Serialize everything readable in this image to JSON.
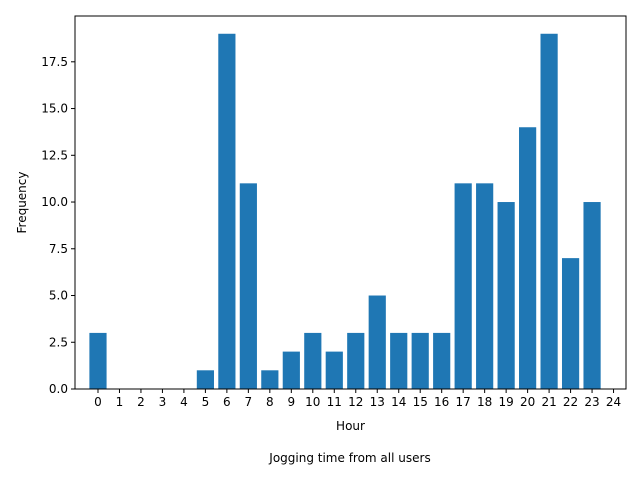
{
  "chart_data": {
    "type": "bar",
    "title": "",
    "caption": "Jogging time from all users",
    "xlabel": "Hour",
    "ylabel": "Frequency",
    "x": [
      0,
      1,
      2,
      3,
      4,
      5,
      6,
      7,
      8,
      9,
      10,
      11,
      12,
      13,
      14,
      15,
      16,
      17,
      18,
      19,
      20,
      21,
      22,
      23
    ],
    "values": [
      3,
      0,
      0,
      0,
      0,
      1,
      19,
      11,
      1,
      2,
      3,
      2,
      3,
      5,
      3,
      3,
      3,
      11,
      11,
      10,
      14,
      19,
      7,
      10
    ],
    "bar_width": 0.8,
    "bar_align": "center",
    "xticks": [
      "0",
      "1",
      "2",
      "3",
      "4",
      "5",
      "6",
      "7",
      "8",
      "9",
      "10",
      "11",
      "12",
      "13",
      "14",
      "15",
      "16",
      "17",
      "18",
      "19",
      "20",
      "21",
      "22",
      "23",
      "24"
    ],
    "yticks": [
      "0.0",
      "2.5",
      "5.0",
      "7.5",
      "10.0",
      "12.5",
      "15.0",
      "17.5"
    ],
    "ylim": [
      0,
      19.95
    ],
    "xlim": [
      -1.07,
      24.58
    ],
    "grid": false,
    "bar_color": "#1f77b4"
  }
}
